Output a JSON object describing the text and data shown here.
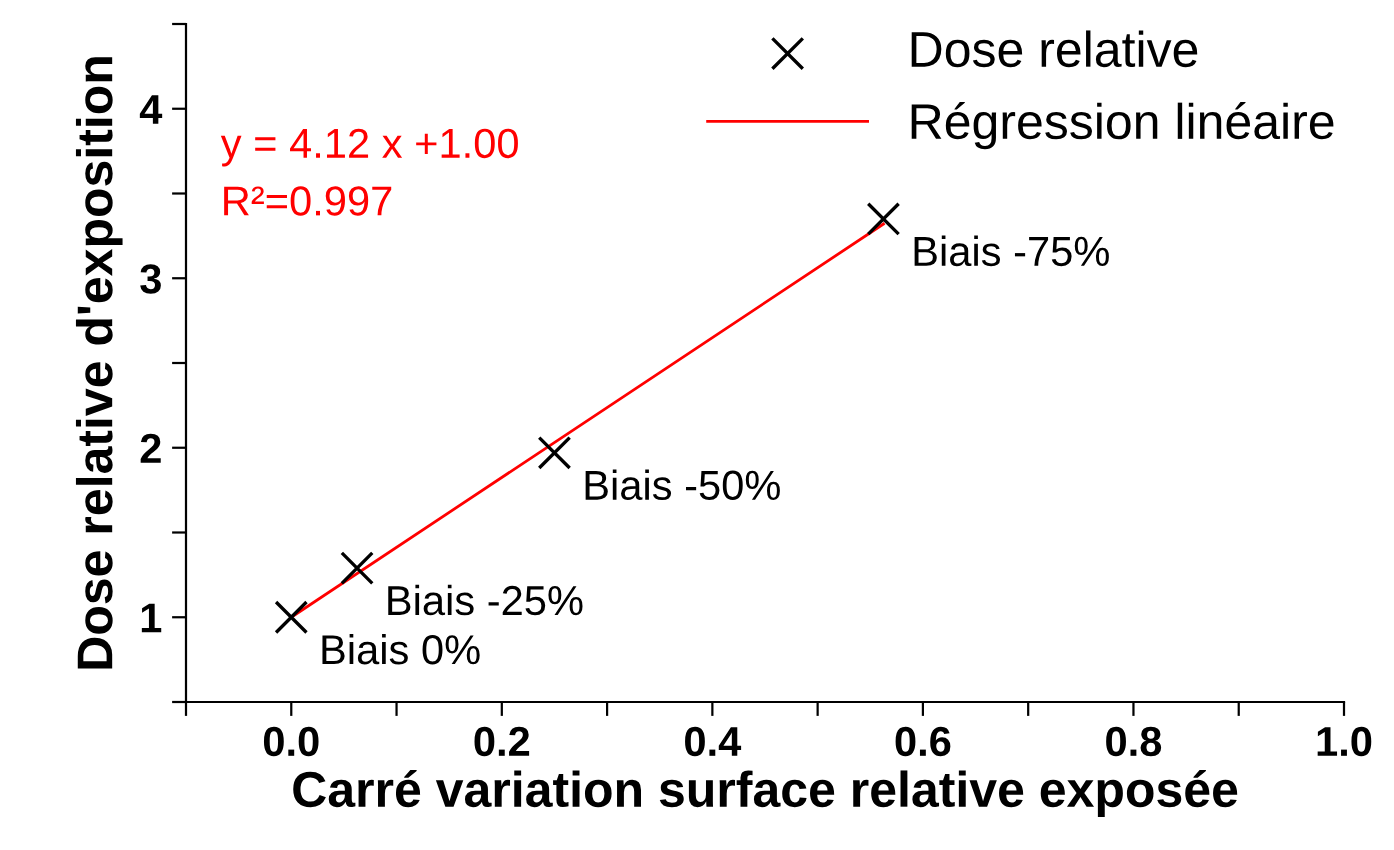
{
  "chart_data": {
    "type": "scatter",
    "xlabel": "Carré variation surface relative exposée",
    "ylabel": "Dose relative d'exposition",
    "xlim": [
      -0.1,
      1.0
    ],
    "ylim": [
      0.5,
      4.5
    ],
    "xticks": [
      {
        "value": -0.1,
        "label": null
      },
      {
        "value": 0.0,
        "label": "0.0"
      },
      {
        "value": 0.1,
        "label": null
      },
      {
        "value": 0.2,
        "label": "0.2"
      },
      {
        "value": 0.3,
        "label": null
      },
      {
        "value": 0.4,
        "label": "0.4"
      },
      {
        "value": 0.5,
        "label": null
      },
      {
        "value": 0.6,
        "label": "0.6"
      },
      {
        "value": 0.7,
        "label": null
      },
      {
        "value": 0.8,
        "label": "0.8"
      },
      {
        "value": 0.9,
        "label": null
      },
      {
        "value": 1.0,
        "label": "1.0"
      }
    ],
    "yticks": [
      {
        "value": 0.5,
        "label": null
      },
      1,
      {
        "value": 1.5,
        "label": null
      },
      2,
      {
        "value": 2.5,
        "label": null
      },
      3,
      {
        "value": 3.5,
        "label": null
      },
      4,
      {
        "value": 4.5,
        "label": null
      }
    ],
    "series": [
      {
        "name": "Dose relative",
        "color": "#000000",
        "marker": "cross",
        "x": [
          0,
          0.0625,
          0.25,
          0.5625
        ],
        "values": [
          1.0,
          1.29,
          1.97,
          3.35
        ]
      },
      {
        "name": "Régression linéaire",
        "type": "line",
        "color": "#ff0000",
        "x": [
          0,
          0.5625
        ],
        "values": [
          1.0,
          3.32
        ]
      }
    ],
    "annotations": [
      {
        "text": "Biais 0%",
        "x": 0,
        "y": 1.0
      },
      {
        "text": "Biais -25%",
        "x": 0.0625,
        "y": 1.29
      },
      {
        "text": "Biais -50%",
        "x": 0.25,
        "y": 1.97
      },
      {
        "text": "Biais -75%",
        "x": 0.5625,
        "y": 3.35
      },
      "y = 4.12 x +1.00",
      "R²=0.997"
    ],
    "legend": "top right",
    "grid": false
  }
}
